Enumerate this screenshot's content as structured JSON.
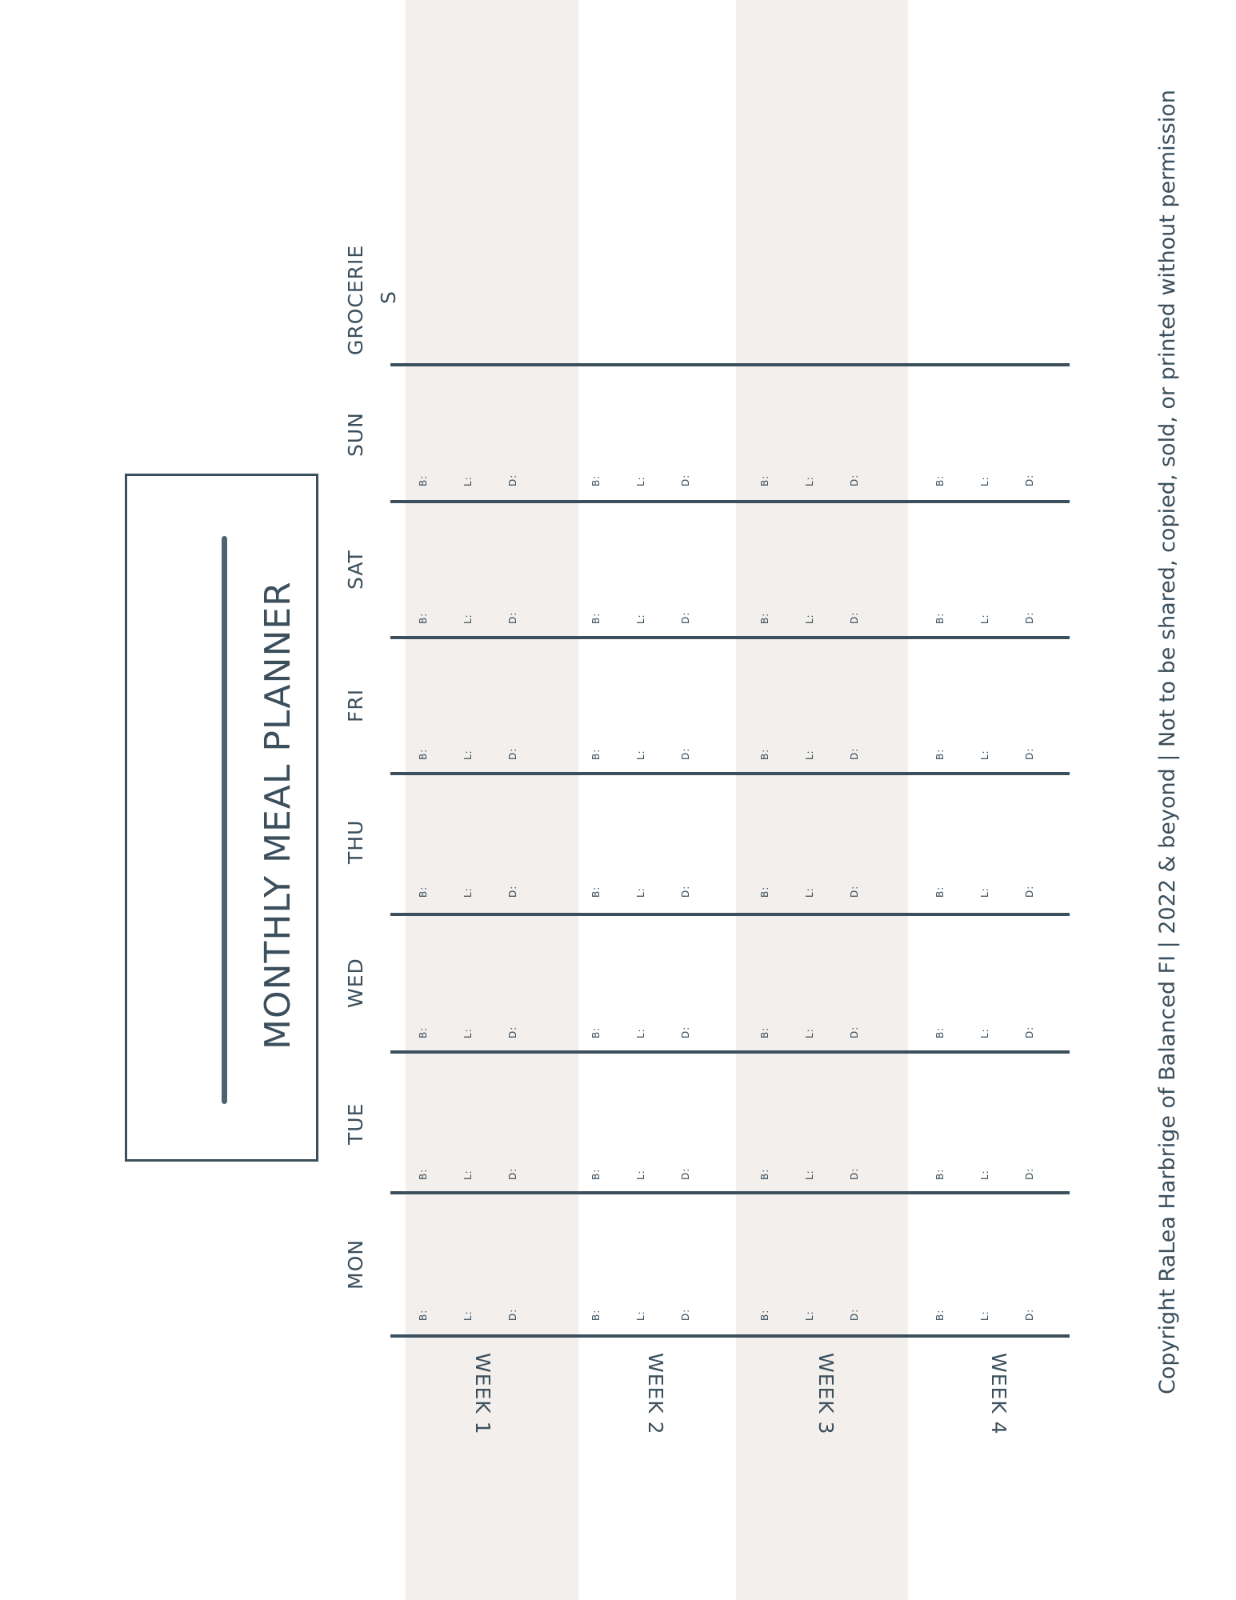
{
  "title": "MONTHLY MEAL PLANNER",
  "days": [
    "MON",
    "TUE",
    "WED",
    "THU",
    "FRI",
    "SAT",
    "SUN"
  ],
  "groceries": [
    "GROCERIE",
    "S"
  ],
  "weeks": [
    "WEEK 1",
    "WEEK 2",
    "WEEK 3",
    "WEEK 4"
  ],
  "meals": [
    "B:",
    "L:",
    "D:"
  ],
  "copyright": "Copyright RaLea Harbrige of Balanced FI | 2022 & beyond | Not to be shared, copied, sold, or printed without permission",
  "colors": {
    "ink": "#3b4f5c",
    "band": "#f3efec"
  }
}
